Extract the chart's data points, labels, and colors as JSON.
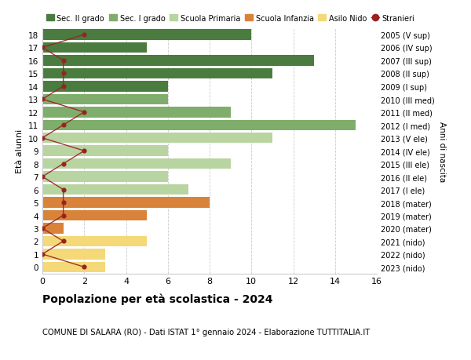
{
  "ages": [
    18,
    17,
    16,
    15,
    14,
    13,
    12,
    11,
    10,
    9,
    8,
    7,
    6,
    5,
    4,
    3,
    2,
    1,
    0
  ],
  "labels_right": [
    "2005 (V sup)",
    "2006 (IV sup)",
    "2007 (III sup)",
    "2008 (II sup)",
    "2009 (I sup)",
    "2010 (III med)",
    "2011 (II med)",
    "2012 (I med)",
    "2013 (V ele)",
    "2014 (IV ele)",
    "2015 (III ele)",
    "2016 (II ele)",
    "2017 (I ele)",
    "2018 (mater)",
    "2019 (mater)",
    "2020 (mater)",
    "2021 (nido)",
    "2022 (nido)",
    "2023 (nido)"
  ],
  "bar_values": [
    10,
    5,
    13,
    11,
    6,
    6,
    9,
    15,
    11,
    6,
    9,
    6,
    7,
    8,
    5,
    1,
    5,
    3,
    3
  ],
  "bar_colors": [
    "#4a7c3f",
    "#4a7c3f",
    "#4a7c3f",
    "#4a7c3f",
    "#4a7c3f",
    "#7fad6b",
    "#7fad6b",
    "#7fad6b",
    "#b8d4a0",
    "#b8d4a0",
    "#b8d4a0",
    "#b8d4a0",
    "#b8d4a0",
    "#d9823a",
    "#d9823a",
    "#d9823a",
    "#f5d878",
    "#f5d878",
    "#f5d878"
  ],
  "stranieri_values": [
    2,
    0,
    1,
    1,
    1,
    0,
    2,
    1,
    0,
    2,
    1,
    0,
    1,
    1,
    1,
    0,
    1,
    0,
    2
  ],
  "xlim": [
    0,
    16
  ],
  "xticks": [
    0,
    2,
    4,
    6,
    8,
    10,
    12,
    14,
    16
  ],
  "color_sec2": "#4a7c3f",
  "color_sec1": "#7fad6b",
  "color_prim": "#b8d4a0",
  "color_infanzia": "#d9823a",
  "color_nido": "#f5d878",
  "color_stranieri": "#992222",
  "legend_labels": [
    "Sec. II grado",
    "Sec. I grado",
    "Scuola Primaria",
    "Scuola Infanzia",
    "Asilo Nido",
    "Stranieri"
  ],
  "title": "Popolazione per età scolastica - 2024",
  "subtitle": "COMUNE DI SALARA (RO) - Dati ISTAT 1° gennaio 2024 - Elaborazione TUTTITALIA.IT",
  "ylabel": "Età alunni",
  "ylabel_right": "Anni di nascita",
  "background_color": "#ffffff",
  "grid_color": "#cccccc"
}
